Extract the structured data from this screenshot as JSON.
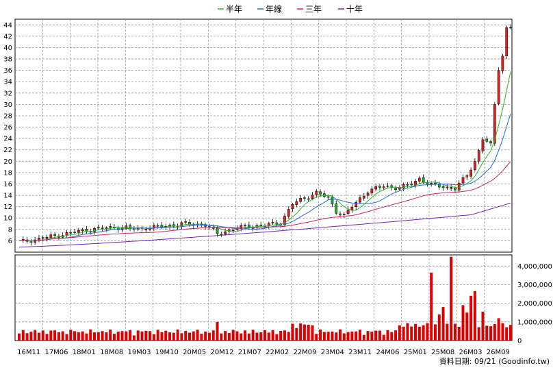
{
  "chart_data": {
    "type": "candlestick+volume",
    "legend": [
      {
        "label": "半年",
        "color": "#22bb22"
      },
      {
        "label": "年線",
        "color": "#2266dd"
      },
      {
        "label": "三年",
        "color": "#cc2266"
      },
      {
        "label": "十年",
        "color": "#7722bb"
      }
    ],
    "price_axis": {
      "ticks": [
        6,
        8,
        10,
        12,
        14,
        16,
        18,
        20,
        22,
        24,
        26,
        28,
        30,
        32,
        34,
        36,
        38,
        40,
        42,
        44
      ],
      "ylim": [
        4,
        45
      ]
    },
    "volume_axis": {
      "ticks": [
        "0",
        "1,000,000",
        "2,000,000",
        "3,000,000",
        "4,000,000"
      ],
      "ylim": [
        0,
        4600000
      ]
    },
    "x_labels": [
      "16M11",
      "17M06",
      "18M01",
      "18M08",
      "19M03",
      "19M10",
      "20M05",
      "20M12",
      "21M07",
      "22M02",
      "22M09",
      "23M04",
      "23M11",
      "24M06",
      "25M01",
      "25M08",
      "26M03",
      "26M09"
    ],
    "colors": {
      "up": "#dd2222",
      "down": "#22aa22",
      "volume": "#dd0000",
      "grid": "#999999"
    },
    "credit": "資料日期: 09/21 (Goodinfo.tw)"
  }
}
